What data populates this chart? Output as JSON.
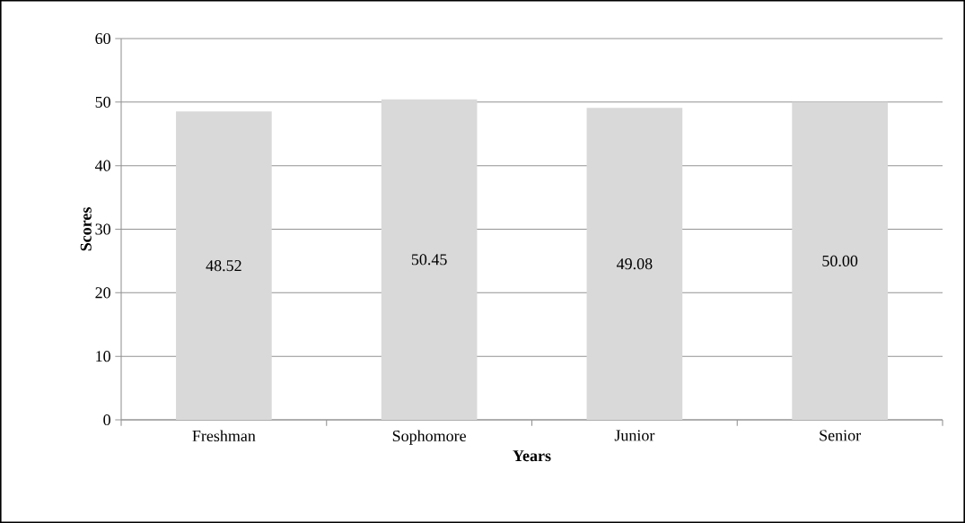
{
  "chart_data": {
    "type": "bar",
    "xlabel": "Years",
    "ylabel": "Scores",
    "categories": [
      "Freshman",
      "Sophomore",
      "Junior",
      "Senior"
    ],
    "values": [
      48.52,
      50.45,
      49.08,
      50.0
    ],
    "value_labels": [
      "48.52",
      "50.45",
      "49.08",
      "50.00"
    ],
    "color": "#d9d9d9",
    "ylim": [
      0,
      60
    ],
    "yticks": [
      0,
      10,
      20,
      30,
      40,
      50,
      60
    ],
    "grid": "y"
  }
}
